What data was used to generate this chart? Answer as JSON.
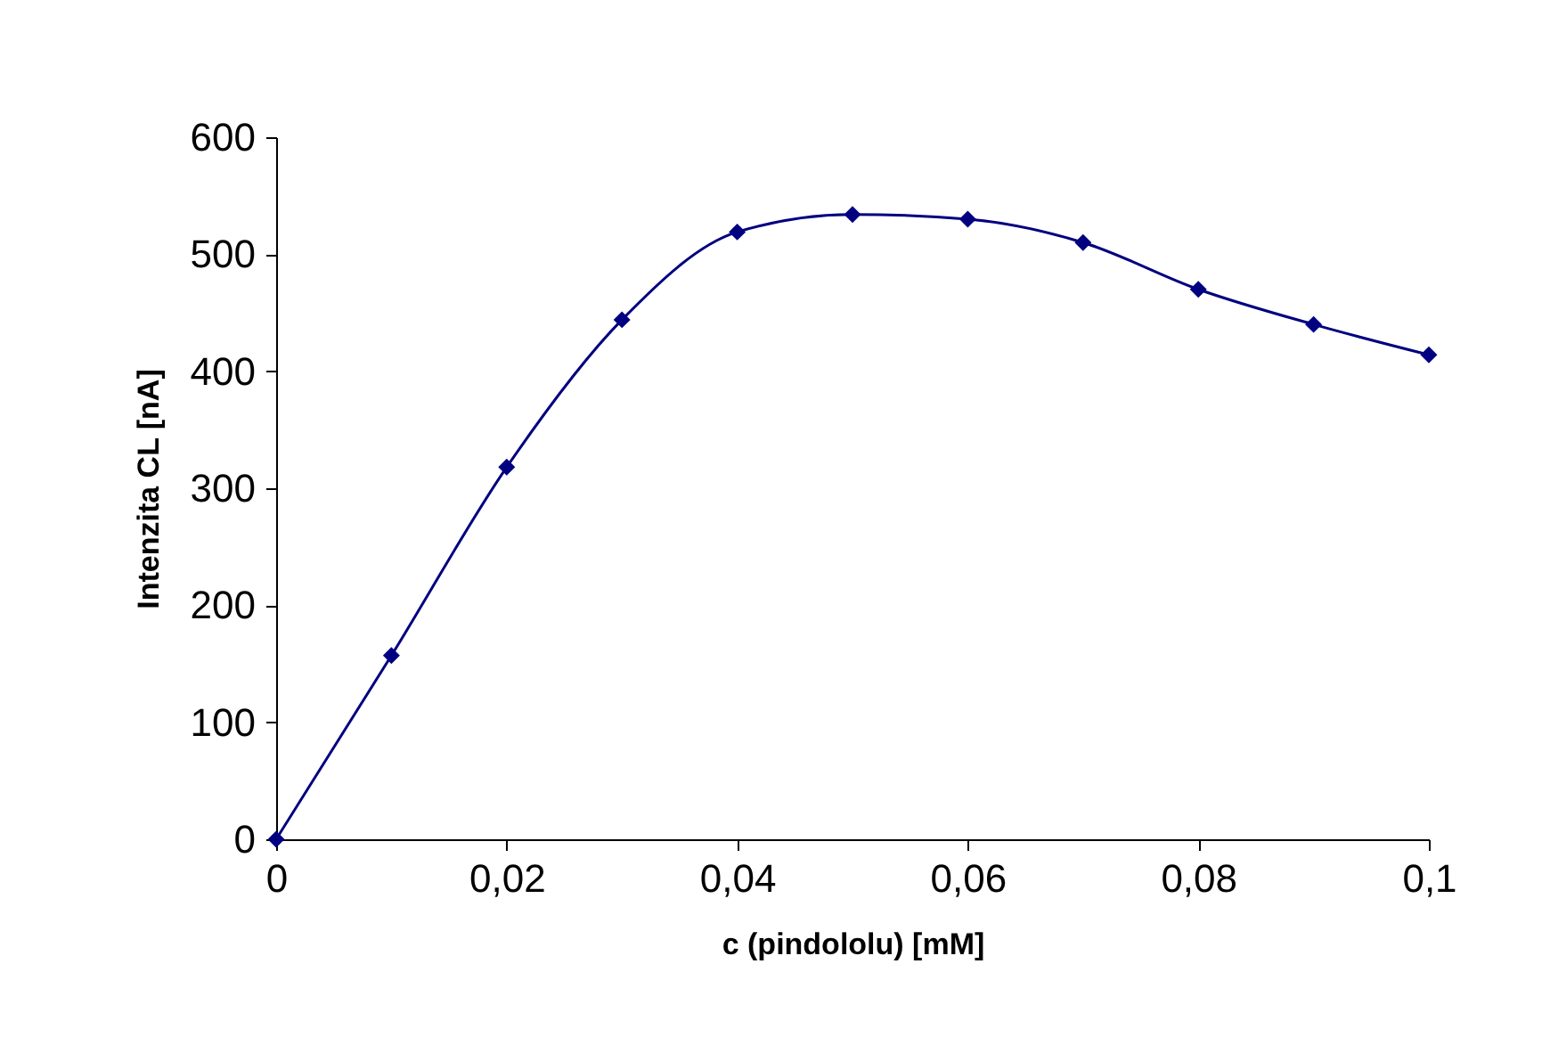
{
  "chart_data": {
    "type": "line",
    "xlabel": "c (pindololu) [mM]",
    "ylabel": "Intenzita  CL  [nA]",
    "x": [
      0,
      0.01,
      0.02,
      0.03,
      0.04,
      0.05,
      0.06,
      0.07,
      0.08,
      0.09,
      0.1
    ],
    "series": [
      {
        "color": "#000080",
        "values": [
          0,
          157,
          318,
          444,
          519,
          534,
          530,
          510,
          470,
          440,
          414
        ]
      }
    ],
    "xlim": [
      0,
      0.1
    ],
    "xticks": [
      0,
      {
        "value": 0.02,
        "label": "0,02"
      },
      {
        "value": 0.04,
        "label": "0,04"
      },
      {
        "value": 0.06,
        "label": "0,06"
      },
      {
        "value": 0.08,
        "label": "0,08"
      },
      {
        "value": 0.1,
        "label": "0,1"
      }
    ],
    "ylim": [
      0,
      600
    ],
    "yticks": [
      0,
      100,
      200,
      300,
      400,
      500,
      600
    ],
    "marker": "diamond",
    "grid": false
  }
}
